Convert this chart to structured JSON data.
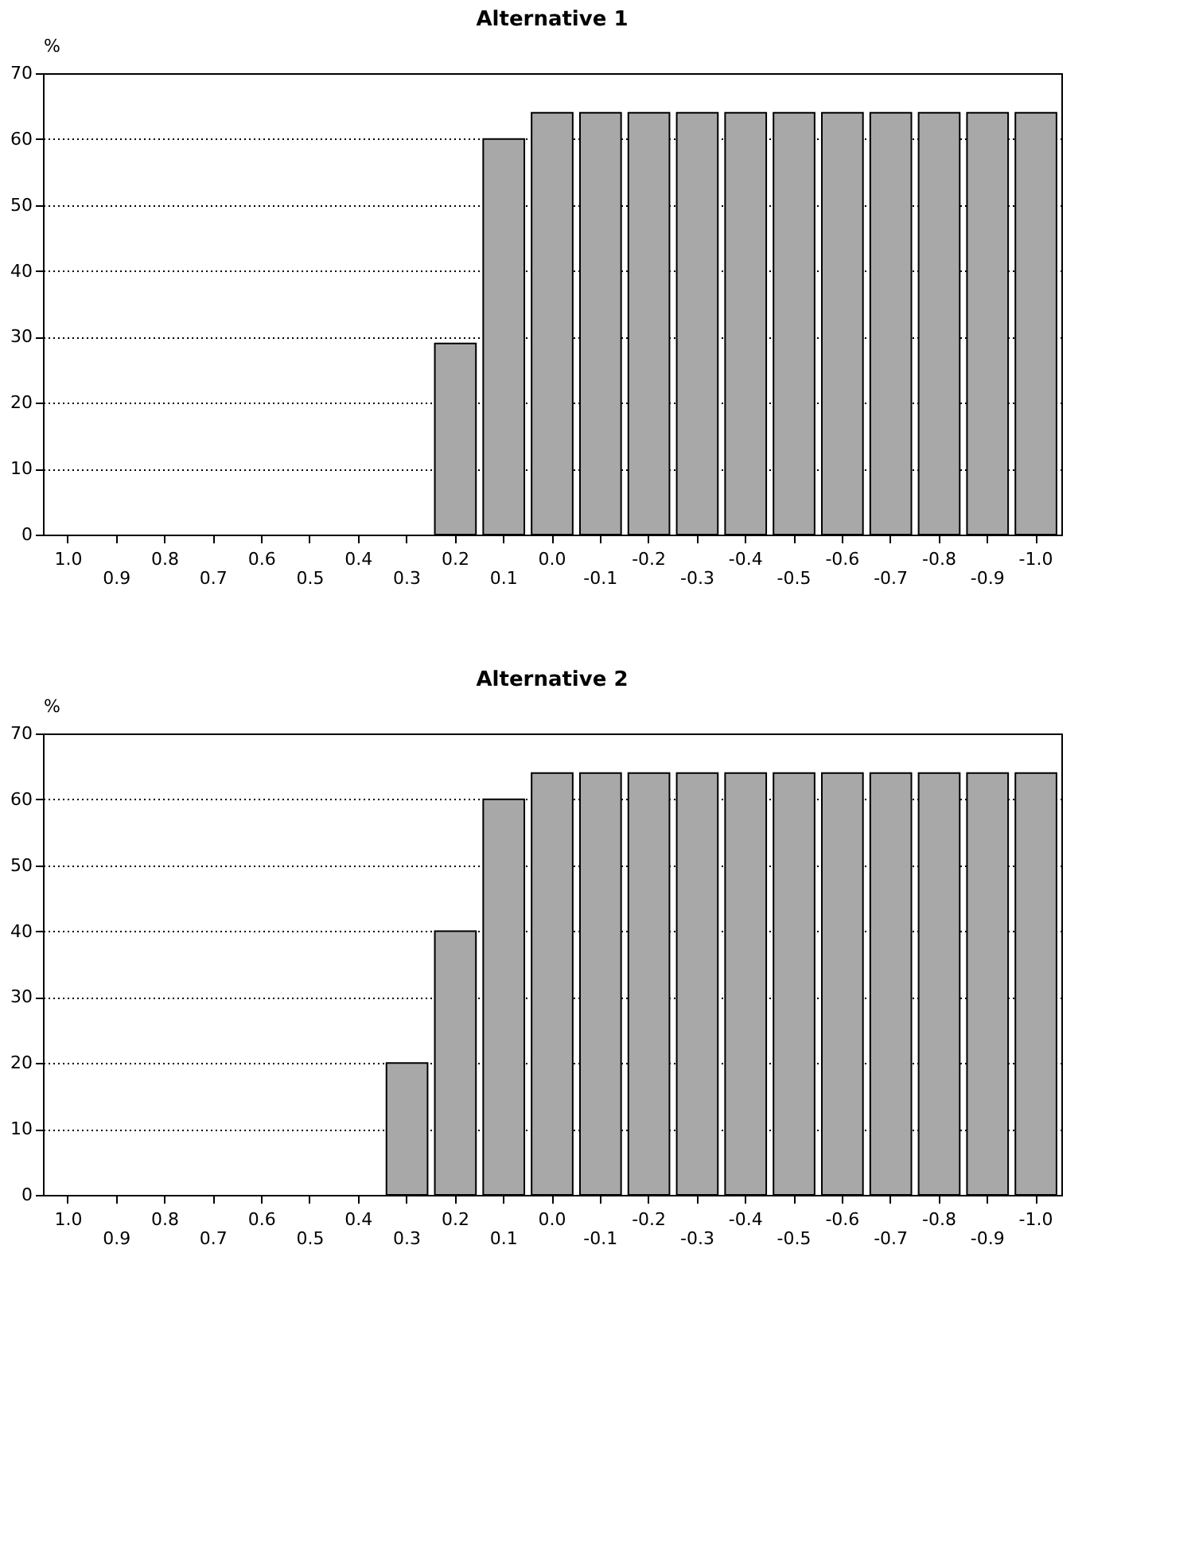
{
  "chart_data": [
    {
      "type": "bar",
      "title": "Alternative 1",
      "ylabel": "%",
      "categories": [
        "1.0",
        "0.9",
        "0.8",
        "0.7",
        "0.6",
        "0.5",
        "0.4",
        "0.3",
        "0.2",
        "0.1",
        "0.0",
        "-0.1",
        "-0.2",
        "-0.3",
        "-0.4",
        "-0.5",
        "-0.6",
        "-0.7",
        "-0.8",
        "-0.9",
        "-1.0"
      ],
      "values": [
        null,
        null,
        null,
        null,
        null,
        null,
        null,
        null,
        29,
        60,
        64,
        64,
        64,
        64,
        64,
        64,
        64,
        64,
        64,
        64,
        64
      ],
      "color": "#a8a8a8",
      "ylim": [
        0,
        70
      ],
      "yticks": [
        0,
        10,
        20,
        30,
        40,
        50,
        60,
        70
      ],
      "grid": "y"
    },
    {
      "type": "bar",
      "title": "Alternative 2",
      "ylabel": "%",
      "categories": [
        "1.0",
        "0.9",
        "0.8",
        "0.7",
        "0.6",
        "0.5",
        "0.4",
        "0.3",
        "0.2",
        "0.1",
        "0.0",
        "-0.1",
        "-0.2",
        "-0.3",
        "-0.4",
        "-0.5",
        "-0.6",
        "-0.7",
        "-0.8",
        "-0.9",
        "-1.0"
      ],
      "values": [
        null,
        null,
        null,
        null,
        null,
        null,
        null,
        20,
        40,
        60,
        64,
        64,
        64,
        64,
        64,
        64,
        64,
        64,
        64,
        64,
        64
      ],
      "color": "#a8a8a8",
      "ylim": [
        0,
        70
      ],
      "yticks": [
        0,
        10,
        20,
        30,
        40,
        50,
        60,
        70
      ],
      "grid": "y"
    }
  ]
}
